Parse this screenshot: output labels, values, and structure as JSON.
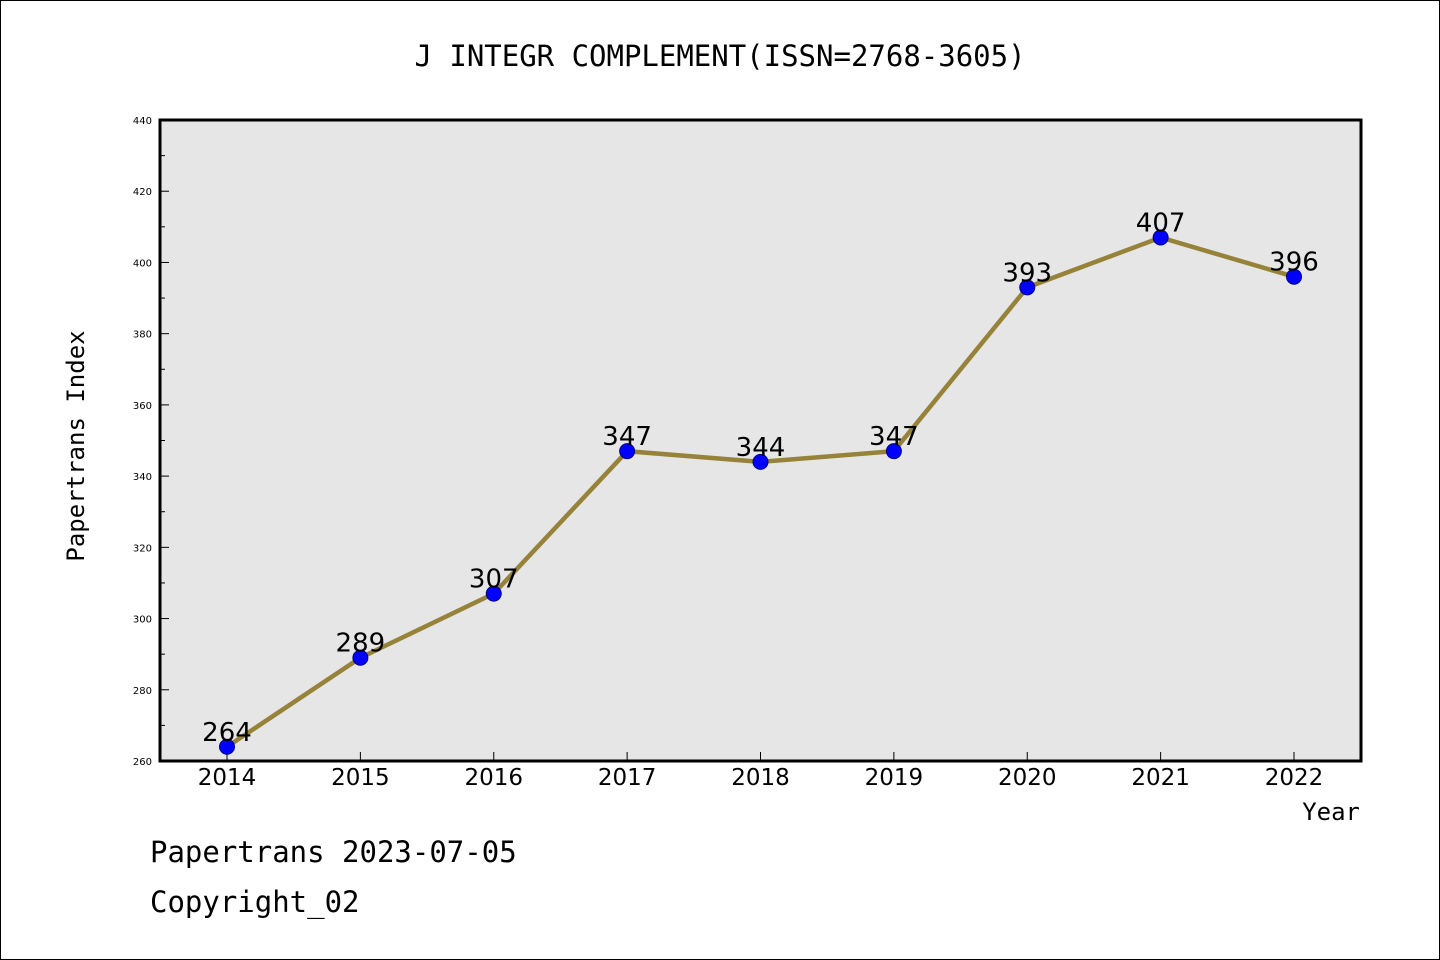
{
  "chart_data": {
    "type": "line",
    "title": "J INTEGR COMPLEMENT(ISSN=2768-3605)",
    "xlabel": "Year",
    "ylabel": "Papertrans Index",
    "categories": [
      "2014",
      "2015",
      "2016",
      "2017",
      "2018",
      "2019",
      "2020",
      "2021",
      "2022"
    ],
    "series": [
      {
        "values": [
          264,
          289,
          307,
          347,
          344,
          347,
          393,
          407,
          396
        ]
      }
    ],
    "ylim": [
      260,
      440
    ],
    "yticks": [
      260,
      280,
      300,
      320,
      340,
      360,
      380,
      400,
      420,
      440
    ],
    "grid": false,
    "data_labels": true,
    "colors": {
      "line": "#968238",
      "marker": "#0000ff",
      "plot_background": "#e6e6e6"
    }
  },
  "footer": {
    "line1": "Papertrans 2023-07-05",
    "line2": "Copyright_02"
  }
}
